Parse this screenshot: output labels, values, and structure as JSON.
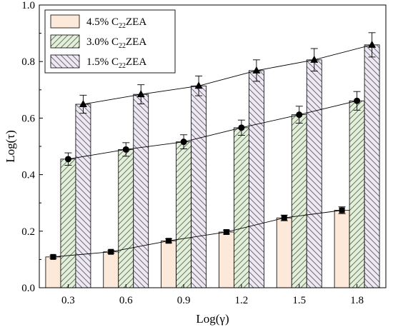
{
  "chart_data": {
    "type": "bar",
    "xlabel": "Log(γ)",
    "ylabel": "Log(τ)",
    "ylim": [
      0,
      1.0
    ],
    "yticks": [
      "0.0",
      "0.2",
      "0.4",
      "0.6",
      "0.8",
      "1.0"
    ],
    "categories": [
      "0.3",
      "0.6",
      "0.9",
      "1.2",
      "1.5",
      "1.8"
    ],
    "grid": false,
    "legend_position": "top-left",
    "series": [
      {
        "name_main": "4.5% C",
        "name_sub": "22",
        "name_tail": "ZEA",
        "fill": "#fde9d9",
        "hatch": "none",
        "marker": "square",
        "values": [
          0.109,
          0.127,
          0.166,
          0.197,
          0.247,
          0.274
        ],
        "errors": [
          0.005,
          0.005,
          0.007,
          0.007,
          0.01,
          0.012
        ]
      },
      {
        "name_main": "3.0% C",
        "name_sub": "22",
        "name_tail": "ZEA",
        "fill": "#e2f0d9",
        "hatch": "forward",
        "marker": "circle",
        "values": [
          0.455,
          0.489,
          0.516,
          0.566,
          0.612,
          0.661
        ],
        "errors": [
          0.022,
          0.024,
          0.025,
          0.027,
          0.03,
          0.033
        ]
      },
      {
        "name_main": "1.5% C",
        "name_sub": "22",
        "name_tail": "ZEA",
        "fill": "#ede7f6",
        "hatch": "backward",
        "marker": "triangle",
        "values": [
          0.649,
          0.684,
          0.714,
          0.768,
          0.806,
          0.859
        ],
        "errors": [
          0.032,
          0.034,
          0.035,
          0.038,
          0.04,
          0.043
        ]
      }
    ]
  }
}
